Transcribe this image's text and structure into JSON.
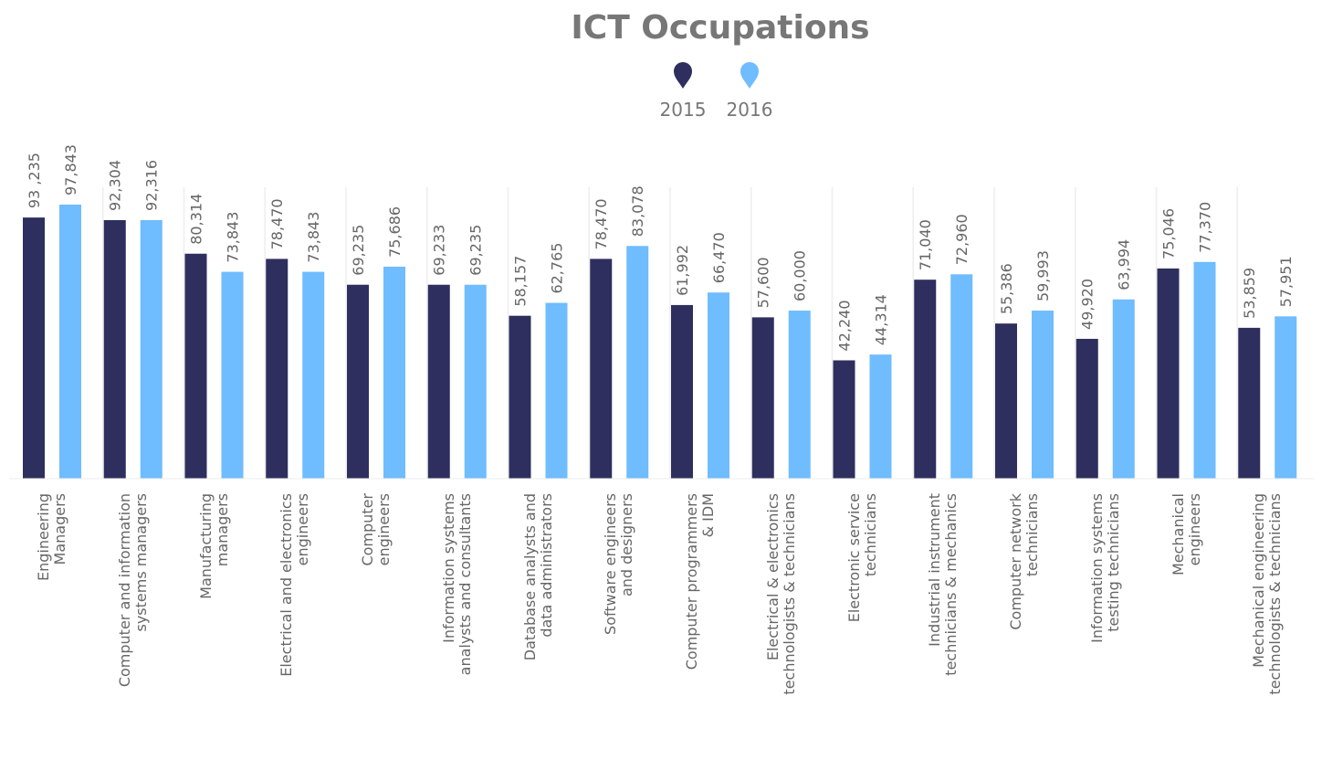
{
  "chart_data": {
    "type": "bar",
    "title": "ICT Occupations",
    "categories": [
      "Engineering\nManagers",
      "Computer and information\nsystems managers",
      "Manufacturing\nmanagers",
      "Electrical and electronics\nengineers",
      "Computer\nengineers",
      "Information systems\nanalysts and consultants",
      "Database analysts and\ndata administrators",
      "Software engineers\nand designers",
      "Computer programmers\n& IDM",
      "Electrical & electronics\ntechnologists & technicians",
      "Electronic service\ntechnicians",
      "Industrial instrument\ntechnicians & mechanics",
      "Computer network\ntechnicians",
      "Information systems\ntesting technicians",
      "Mechanical\nengineers",
      "Mechanical engineering\ntechnologists & technicians"
    ],
    "series": [
      {
        "name": "2015",
        "color": "#2e2f5e",
        "values": [
          93235,
          92304,
          80314,
          78470,
          69235,
          69233,
          58157,
          78470,
          61992,
          57600,
          42240,
          71040,
          55386,
          49920,
          75046,
          53859
        ],
        "value_labels": [
          "93 ,235",
          "92,304",
          "80,314",
          "78,470",
          "69,235",
          "69,233",
          "58,157",
          "78,470",
          "61,992",
          "57,600",
          "42,240",
          "71,040",
          "55,386",
          "49,920",
          "75,046",
          "53,859"
        ]
      },
      {
        "name": "2016",
        "color": "#6fbcff",
        "values": [
          97843,
          92316,
          73843,
          73843,
          75686,
          69235,
          62765,
          83078,
          66470,
          60000,
          44314,
          72960,
          59993,
          63994,
          77370,
          57951
        ],
        "value_labels": [
          "97,843",
          "92,316",
          "73,843",
          "73,843",
          "75,686",
          "69,235",
          "62,765",
          "83,078",
          "66,470",
          "60,000",
          "44,314",
          "72,960",
          "59,993",
          "63,994",
          "77,370",
          "57,951"
        ]
      }
    ]
  }
}
